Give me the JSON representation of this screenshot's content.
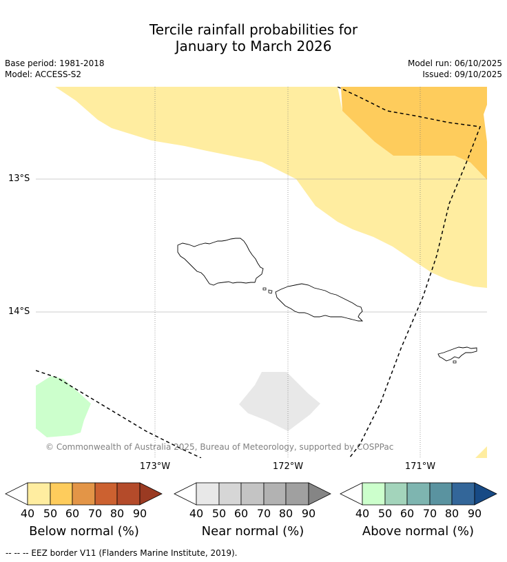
{
  "title": {
    "line1": "Tercile rainfall probabilities for",
    "line2": "January to March 2026"
  },
  "meta": {
    "base_period": "Base period: 1981-2018",
    "model": "Model: ACCESS-S2",
    "model_run": "Model run: 06/10/2025",
    "issued": "Issued: 09/10/2025"
  },
  "map": {
    "lat_labels": [
      "13°S",
      "14°S"
    ],
    "lon_labels": [
      "173°W",
      "172°W",
      "171°W"
    ],
    "copyright": "© Commonwealth of Australia 2025, Bureau of Meteorology, supported by COSPPac"
  },
  "colorbars": {
    "ticks": [
      "40",
      "50",
      "60",
      "70",
      "80",
      "90"
    ],
    "below": {
      "label": "Below normal (%)",
      "colors": [
        "#ffeda0",
        "#fecc5c",
        "#e39547",
        "#cc6130",
        "#b44b2a",
        "#9a3a22"
      ]
    },
    "near": {
      "label": "Near normal (%)",
      "colors": [
        "#e8e8e8",
        "#d6d6d6",
        "#c4c4c4",
        "#b2b2b2",
        "#a0a0a0",
        "#858585"
      ]
    },
    "above": {
      "label": "Above normal (%)",
      "colors": [
        "#ccffcc",
        "#a3d4bb",
        "#7eb5b0",
        "#5a93a0",
        "#336699",
        "#174a85"
      ]
    }
  },
  "footer": {
    "eez_legend": "--  --  -- EEZ border V11 (Flanders Marine Institute, 2019)."
  }
}
